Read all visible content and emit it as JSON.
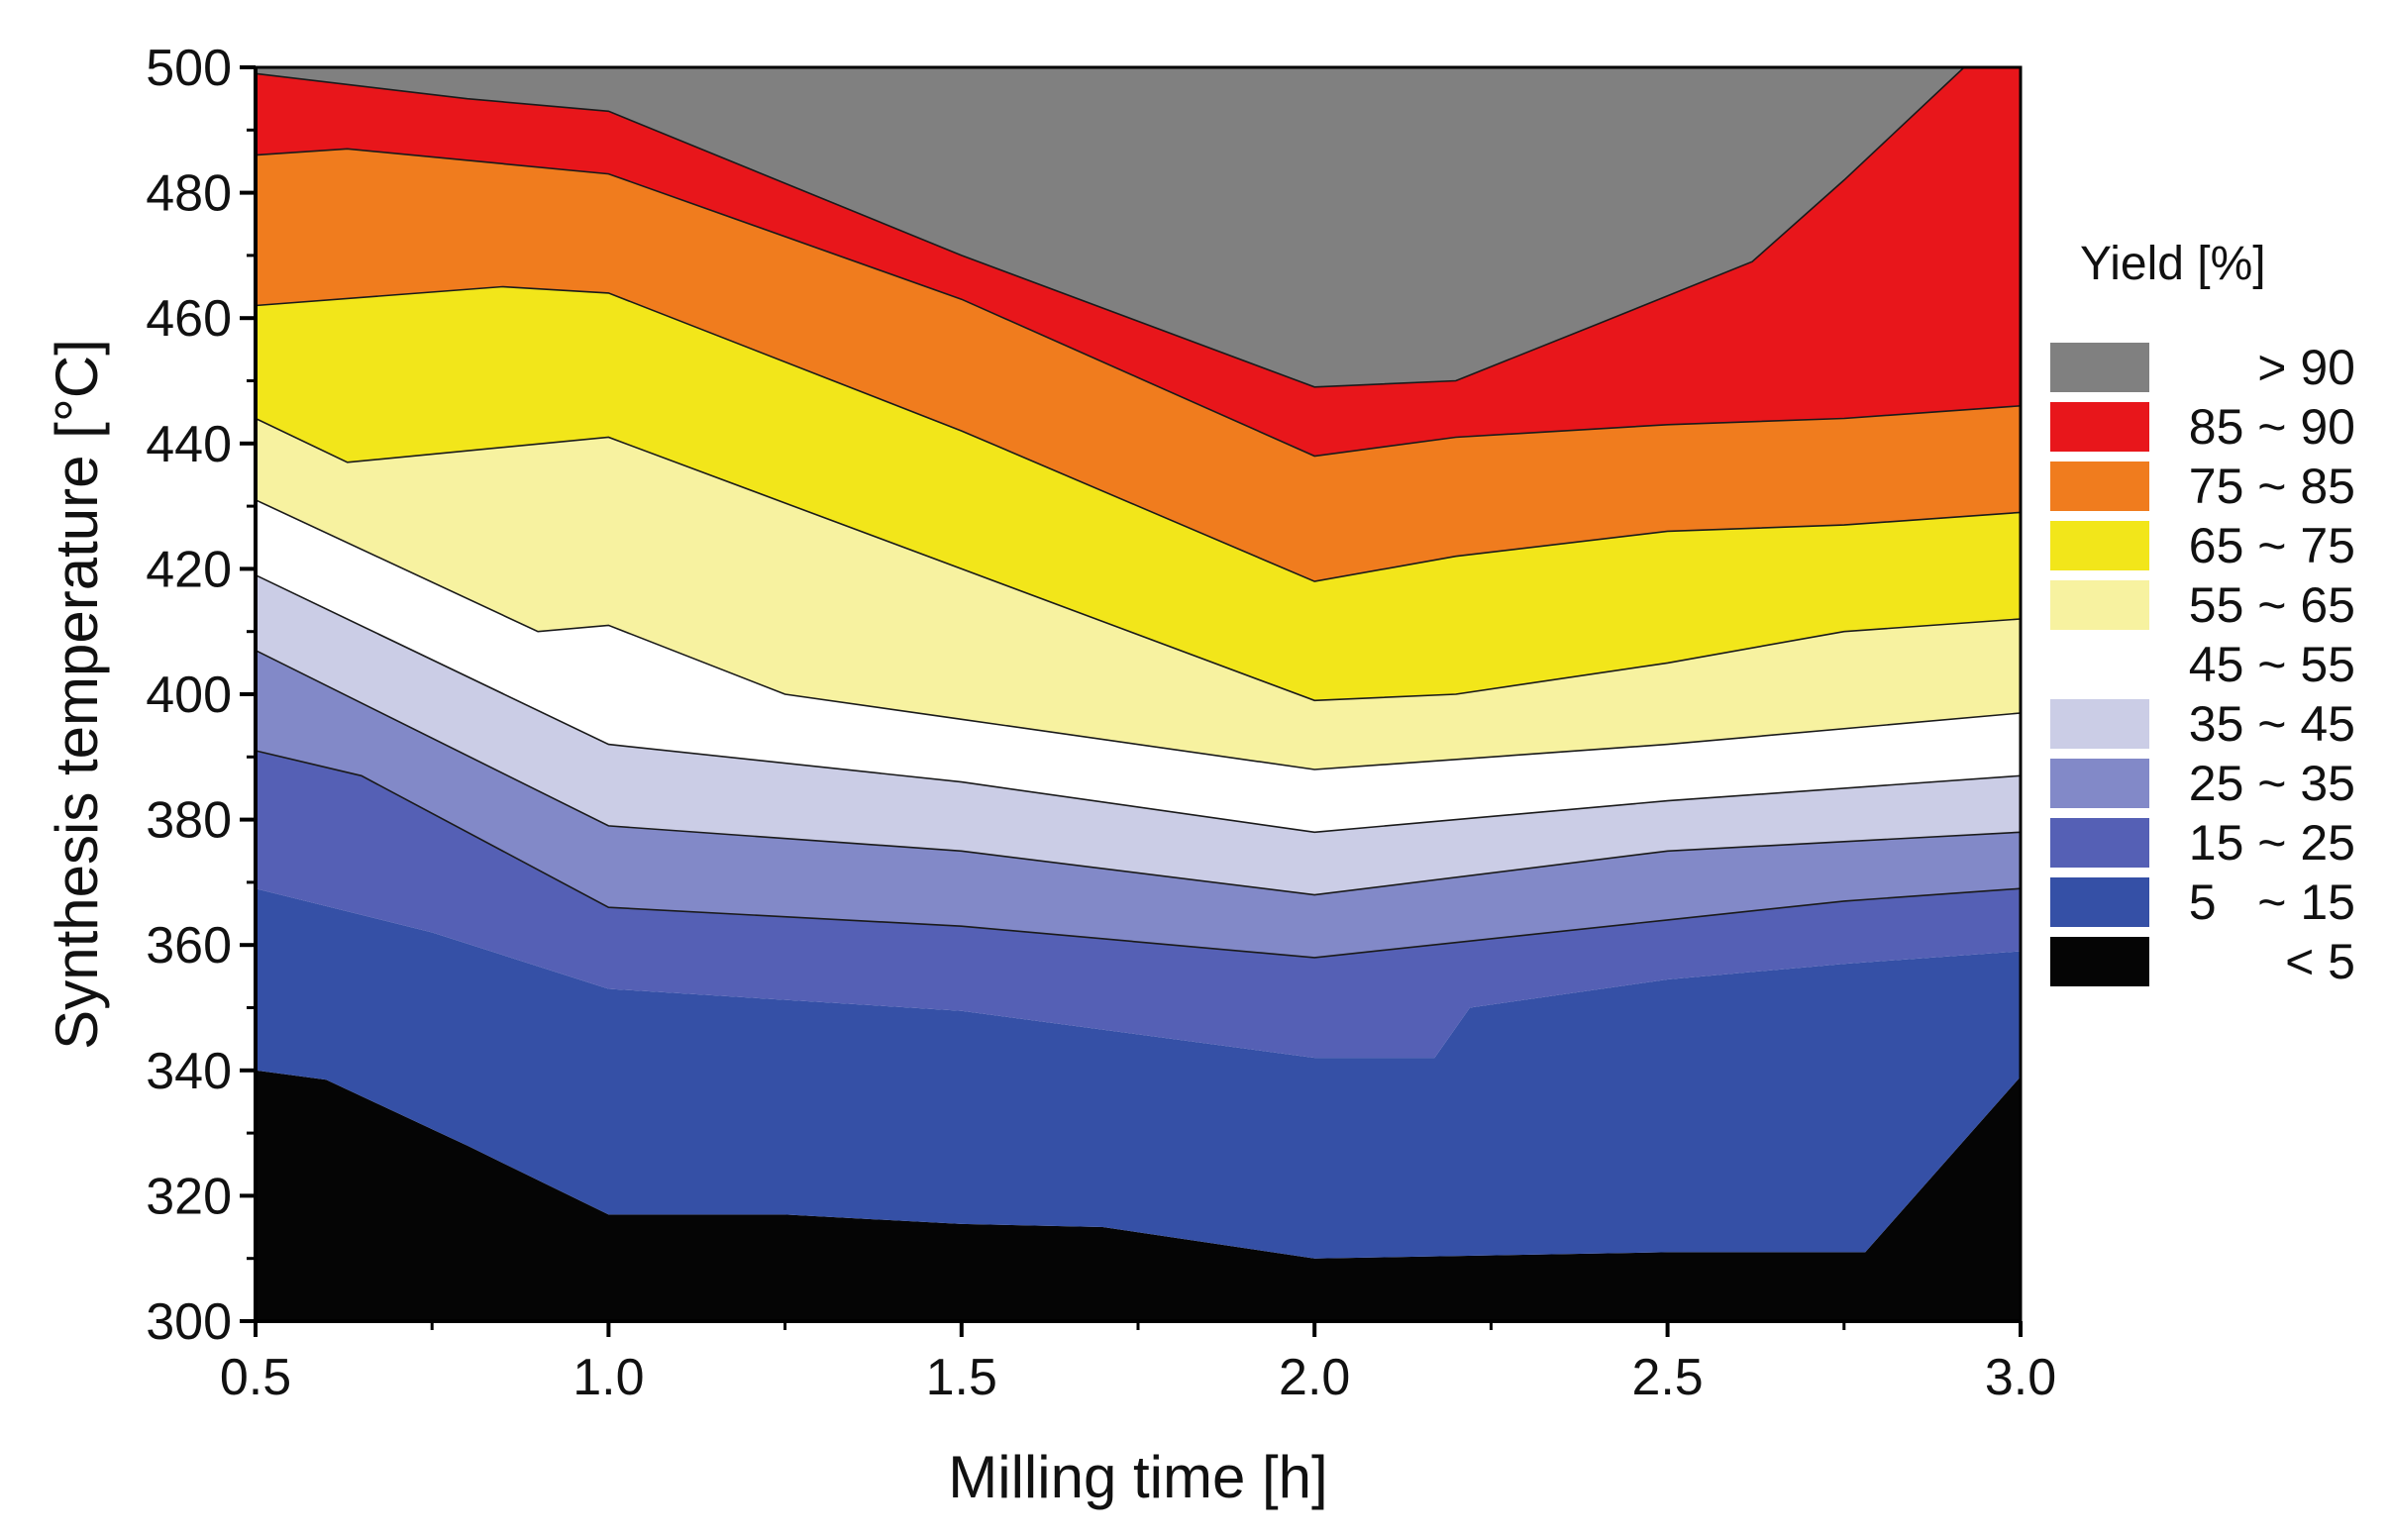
{
  "chart_data": {
    "type": "heatmap",
    "subtype": "filled-contour",
    "title": "",
    "xlabel": "Milling time [h]",
    "ylabel": "Synthesis temperature [°C]",
    "xlim": [
      0.5,
      3.0
    ],
    "ylim": [
      300,
      500
    ],
    "xticks": [
      0.5,
      1.0,
      1.5,
      2.0,
      2.5,
      3.0
    ],
    "xtick_labels": [
      "0.5",
      "1.0",
      "1.5",
      "2.0",
      "2.5",
      "3.0"
    ],
    "yticks": [
      300,
      320,
      340,
      360,
      380,
      400,
      420,
      440,
      460,
      480,
      500
    ],
    "ytick_labels": [
      "300",
      "320",
      "340",
      "360",
      "380",
      "400",
      "420",
      "440",
      "460",
      "480",
      "500"
    ],
    "legend": {
      "title": "Yield [%]",
      "position": "right",
      "entries": [
        {
          "label": "> 90",
          "color": "#808080"
        },
        {
          "label": "85 ~ 90",
          "color": "#e8161b"
        },
        {
          "label": "75 ~ 85",
          "color": "#f07c1e"
        },
        {
          "label": "65 ~ 75",
          "color": "#f2e61a"
        },
        {
          "label": "55 ~ 65",
          "color": "#f7f2a0"
        },
        {
          "label": "45 ~ 55",
          "color": "#ffffff"
        },
        {
          "label": "35 ~ 45",
          "color": "#cbcde6"
        },
        {
          "label": "25 ~ 35",
          "color": "#8289c8"
        },
        {
          "label": "15 ~ 25",
          "color": "#5560b5"
        },
        {
          "label": "5   ~ 15",
          "color": "#3550a6"
        },
        {
          "label": "< 5",
          "color": "#050505"
        }
      ]
    },
    "boundaries": [
      {
        "level": 5,
        "points": [
          [
            0.5,
            340
          ],
          [
            0.6,
            338.5
          ],
          [
            0.8,
            328
          ],
          [
            1.0,
            317
          ],
          [
            1.25,
            317
          ],
          [
            1.5,
            315.5
          ],
          [
            1.7,
            315
          ],
          [
            2.0,
            310
          ],
          [
            2.5,
            311
          ],
          [
            2.78,
            311
          ],
          [
            3.0,
            339
          ]
        ]
      },
      {
        "level": 15,
        "points": [
          [
            0.5,
            369
          ],
          [
            0.75,
            362
          ],
          [
            1.0,
            353
          ],
          [
            1.5,
            349.5
          ],
          [
            2.0,
            342
          ],
          [
            2.17,
            342
          ],
          [
            2.22,
            350
          ],
          [
            2.5,
            354.5
          ],
          [
            2.75,
            357
          ],
          [
            3.0,
            359
          ]
        ]
      },
      {
        "level": 25,
        "points": [
          [
            0.5,
            391
          ],
          [
            0.65,
            387
          ],
          [
            1.0,
            366
          ],
          [
            1.5,
            363
          ],
          [
            2.0,
            358
          ],
          [
            2.5,
            364
          ],
          [
            2.75,
            367
          ],
          [
            3.0,
            369
          ]
        ]
      },
      {
        "level": 35,
        "points": [
          [
            0.5,
            407
          ],
          [
            1.0,
            379
          ],
          [
            1.5,
            375
          ],
          [
            2.0,
            368
          ],
          [
            2.5,
            375
          ],
          [
            3.0,
            378
          ]
        ]
      },
      {
        "level": 45,
        "points": [
          [
            0.5,
            419
          ],
          [
            1.0,
            392
          ],
          [
            1.5,
            386
          ],
          [
            2.0,
            378
          ],
          [
            2.5,
            383
          ],
          [
            3.0,
            387
          ]
        ]
      },
      {
        "level": 55,
        "points": [
          [
            0.5,
            431
          ],
          [
            0.9,
            410
          ],
          [
            1.0,
            411
          ],
          [
            1.25,
            400
          ],
          [
            1.5,
            396
          ],
          [
            2.0,
            388
          ],
          [
            2.5,
            392
          ],
          [
            3.0,
            397
          ]
        ]
      },
      {
        "level": 65,
        "points": [
          [
            0.5,
            444
          ],
          [
            0.63,
            437
          ],
          [
            1.0,
            441
          ],
          [
            1.5,
            420
          ],
          [
            2.0,
            399
          ],
          [
            2.2,
            400
          ],
          [
            2.5,
            405
          ],
          [
            2.75,
            410
          ],
          [
            3.0,
            412
          ]
        ]
      },
      {
        "level": 75,
        "points": [
          [
            0.5,
            462
          ],
          [
            0.85,
            465
          ],
          [
            1.0,
            464
          ],
          [
            1.5,
            442
          ],
          [
            2.0,
            418
          ],
          [
            2.2,
            422
          ],
          [
            2.5,
            426
          ],
          [
            2.75,
            427
          ],
          [
            3.0,
            429
          ]
        ]
      },
      {
        "level": 85,
        "points": [
          [
            0.5,
            486
          ],
          [
            0.63,
            487
          ],
          [
            1.0,
            483
          ],
          [
            1.5,
            463
          ],
          [
            2.0,
            438
          ],
          [
            2.2,
            441
          ],
          [
            2.5,
            443
          ],
          [
            2.75,
            444
          ],
          [
            3.0,
            446
          ]
        ]
      },
      {
        "level": 90,
        "points": [
          [
            0.5,
            499
          ],
          [
            0.8,
            495
          ],
          [
            1.0,
            493
          ],
          [
            1.5,
            470
          ],
          [
            2.0,
            449
          ],
          [
            2.2,
            450
          ],
          [
            2.4,
            459
          ],
          [
            2.62,
            469
          ],
          [
            2.75,
            482
          ],
          [
            2.92,
            500
          ],
          [
            3.0,
            500
          ]
        ]
      }
    ]
  }
}
